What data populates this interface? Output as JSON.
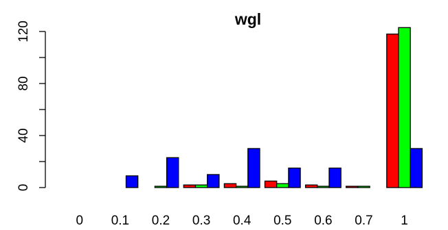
{
  "chart_data": {
    "type": "bar",
    "title": "wgl",
    "xlabel": "",
    "ylabel": "",
    "categories": [
      "0",
      "0.1",
      "0.2",
      "0.3",
      "0.4",
      "0.5",
      "0.6",
      "0.7",
      "1"
    ],
    "series": [
      {
        "color": "#ff0000",
        "values": [
          0,
          0,
          0,
          2,
          3,
          5,
          2,
          1,
          118
        ]
      },
      {
        "color": "#00ff00",
        "values": [
          0,
          0,
          1,
          2,
          1,
          3,
          1,
          1,
          123
        ]
      },
      {
        "color": "#0000ff",
        "values": [
          0,
          9,
          23,
          10,
          30,
          15,
          15,
          0,
          30
        ]
      }
    ],
    "ylim": [
      0,
      120
    ],
    "yticks": [
      "0",
      "40",
      "80",
      "120"
    ],
    "grid": false,
    "legend": "none"
  }
}
